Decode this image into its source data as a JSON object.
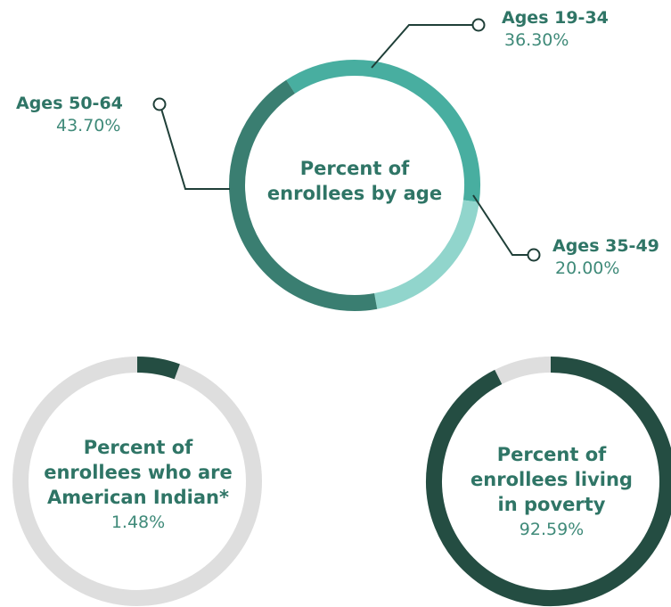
{
  "colors": {
    "age_19_34": "#48aea0",
    "age_35_49": "#91d5cc",
    "age_50_64": "#3a7e71",
    "dark": "#244d42",
    "track": "#dedede",
    "leader": "#1f3f38"
  },
  "chart_data": [
    {
      "type": "pie",
      "title": "Percent of enrollees by age",
      "slices": [
        {
          "label": "Ages 19-34",
          "value": 36.3
        },
        {
          "label": "Ages 35-49",
          "value": 20.0
        },
        {
          "label": "Ages 50-64",
          "value": 43.7
        }
      ],
      "value_labels": [
        "36.30%",
        "20.00%",
        "43.70%"
      ]
    },
    {
      "type": "pie",
      "title": "Percent of enrollees who are American Indian*",
      "value": 1.48,
      "value_label": "1.48%"
    },
    {
      "type": "pie",
      "title": "Percent of enrollees living in poverty",
      "value": 92.59,
      "value_label": "92.59%"
    }
  ],
  "text": {
    "age_title_1": "Percent of",
    "age_title_2": "enrollees by age",
    "ai_title_1": "Percent of",
    "ai_title_2": "enrollees who are",
    "ai_title_3": "American Indian*",
    "pov_title_1": "Percent of",
    "pov_title_2": "enrollees living",
    "pov_title_3": "in poverty"
  }
}
